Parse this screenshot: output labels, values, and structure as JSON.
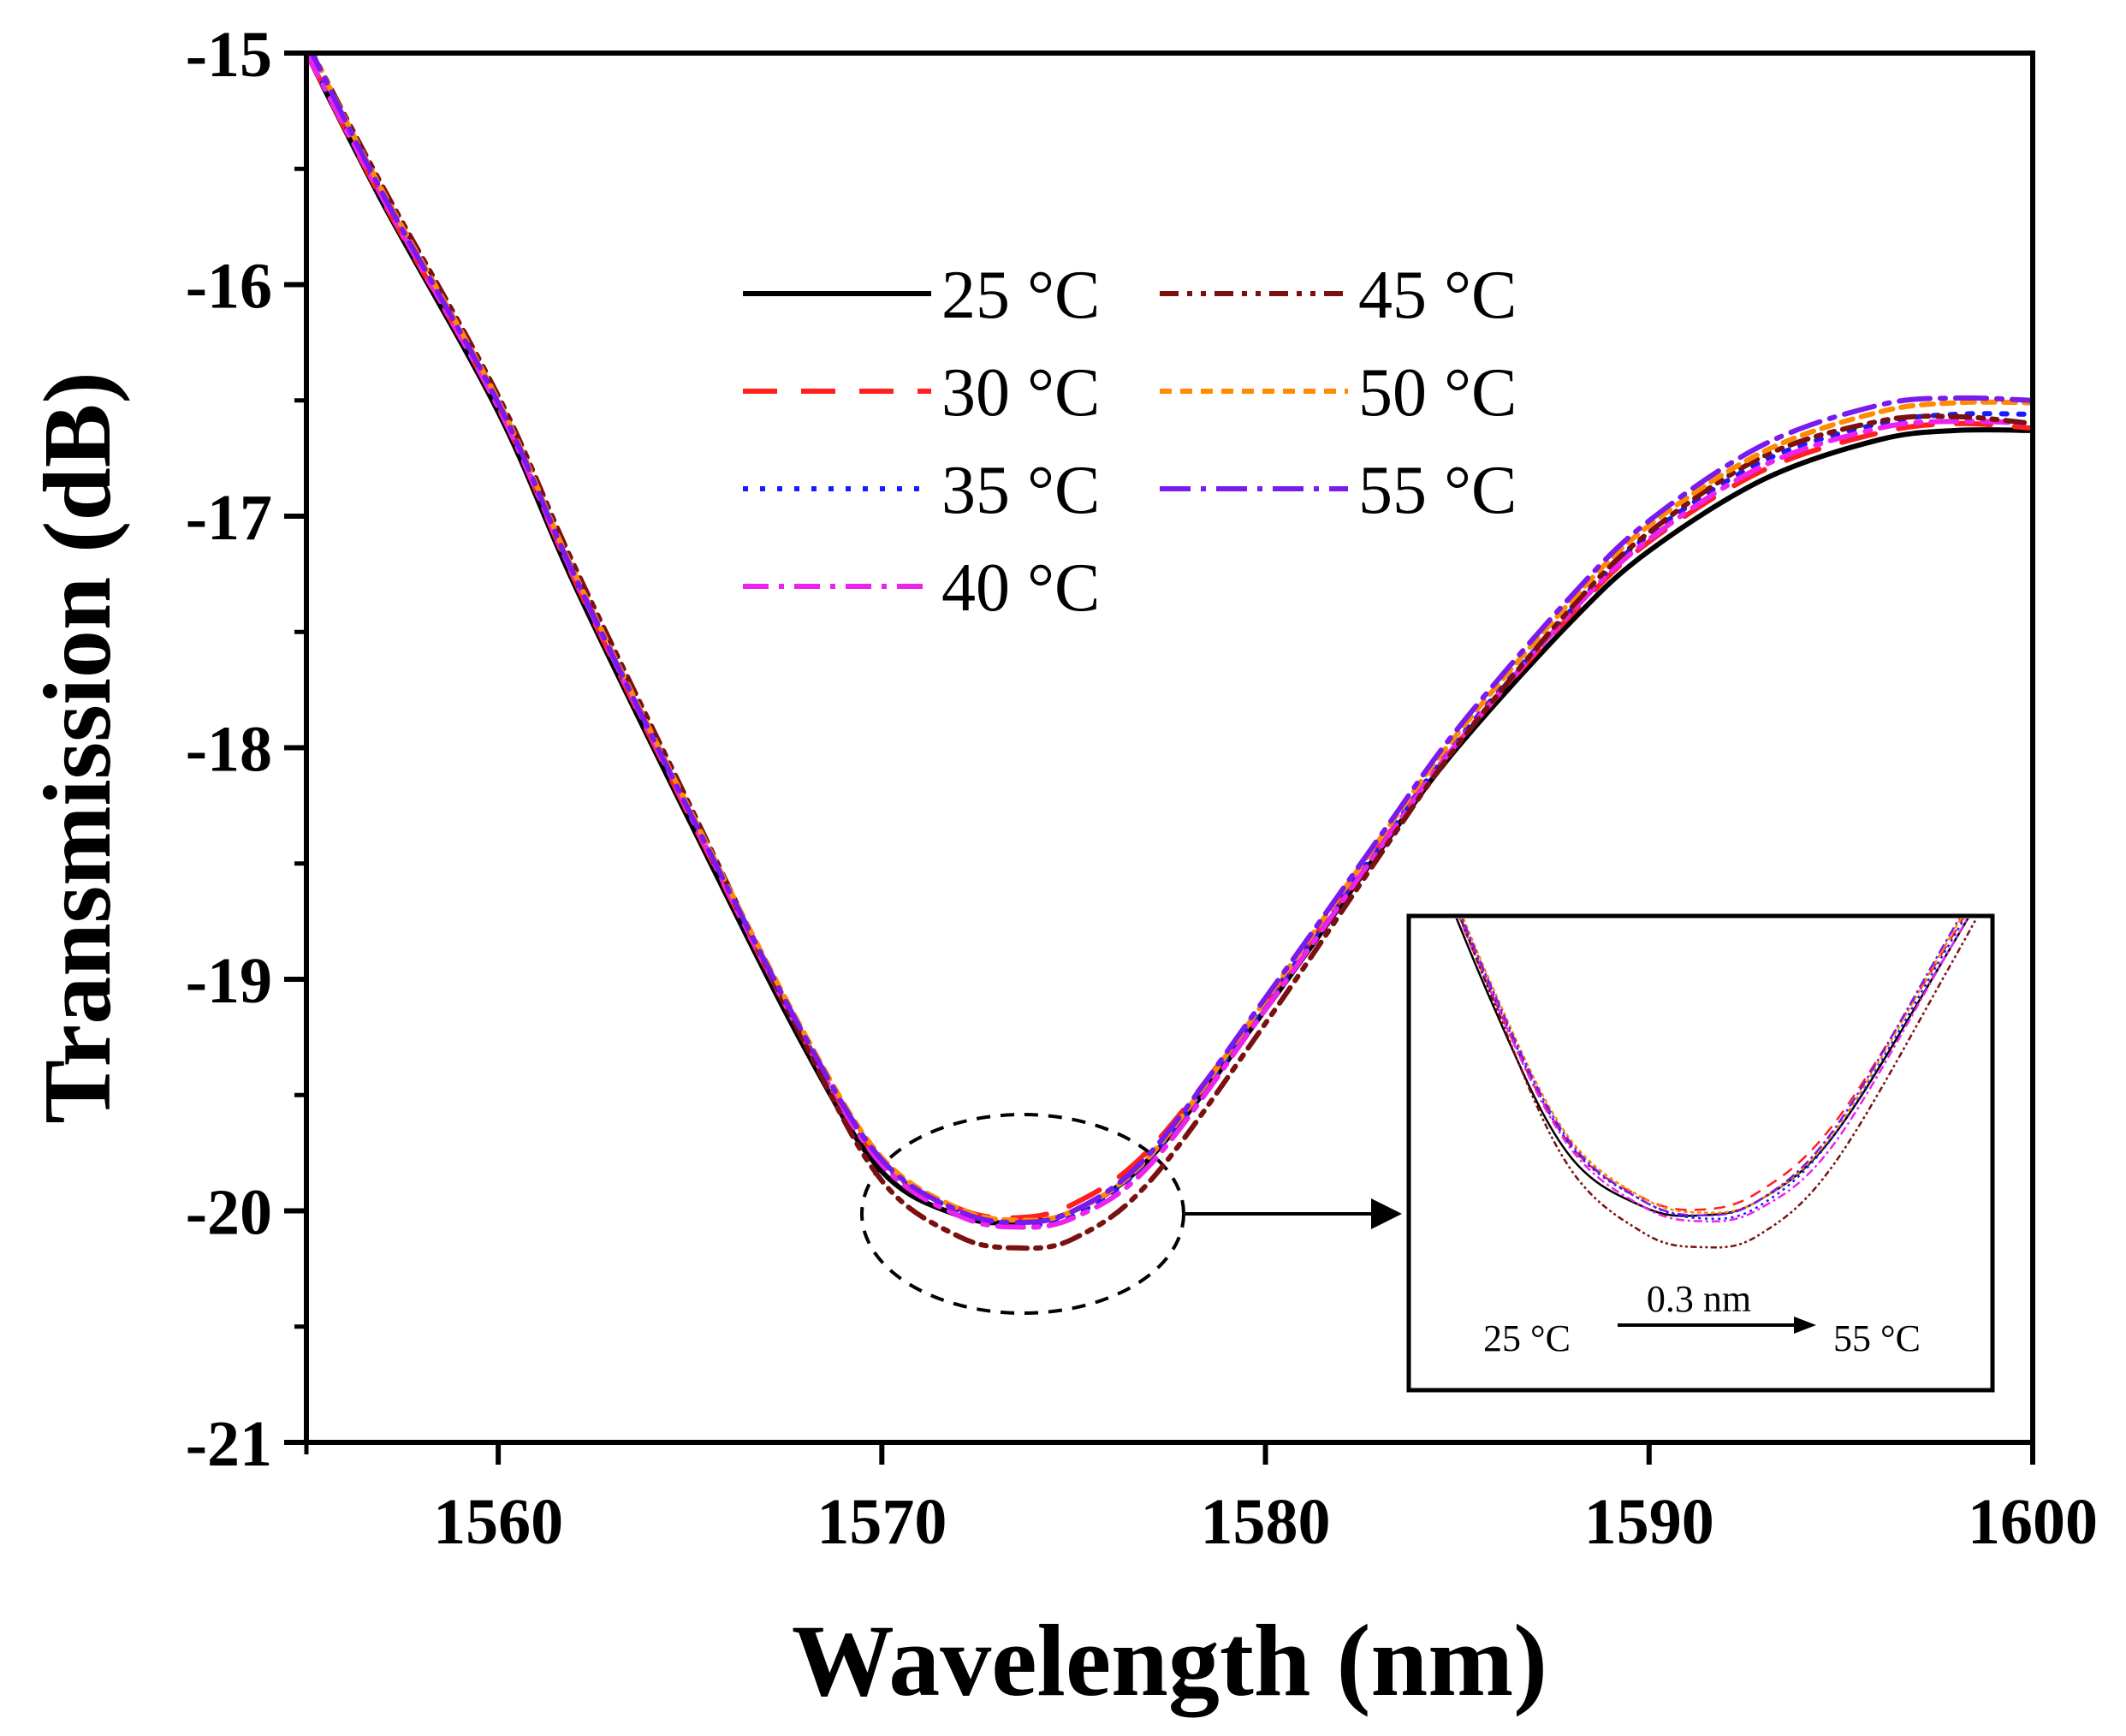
{
  "chart_data": {
    "type": "line",
    "xlabel": "Wavelength (nm)",
    "ylabel": "Transmission (dB)",
    "xlim": [
      1555,
      1600
    ],
    "ylim": [
      -21,
      -15
    ],
    "x_ticks": [
      1560,
      1570,
      1580,
      1590,
      1600
    ],
    "x_tick_labels": [
      "1560",
      "1570",
      "1580",
      "1590",
      "1600"
    ],
    "y_ticks": [
      -15,
      -16,
      -17,
      -18,
      -19,
      -20,
      -21
    ],
    "y_tick_labels": [
      "-15",
      "-16",
      "-17",
      "-18",
      "-19",
      "-20",
      "-21"
    ],
    "grid": false,
    "legend_position": "top-center",
    "x": [
      1555,
      1557,
      1560,
      1562,
      1565,
      1568,
      1570,
      1572,
      1573.5,
      1575,
      1577,
      1580,
      1583,
      1585,
      1588,
      1590,
      1593,
      1596,
      1598,
      1600
    ],
    "series": [
      {
        "name": "25 °C",
        "color": "#000000",
        "dash": "solid",
        "values": [
          -15.0,
          -15.65,
          -16.55,
          -17.3,
          -18.32,
          -19.3,
          -19.83,
          -20.02,
          -20.05,
          -20.0,
          -19.77,
          -19.13,
          -18.44,
          -18.0,
          -17.45,
          -17.15,
          -16.84,
          -16.67,
          -16.63,
          -16.63
        ]
      },
      {
        "name": "30 °C",
        "color": "#ff1f1f",
        "dash": "40,28",
        "values": [
          -15.0,
          -15.64,
          -16.53,
          -17.28,
          -18.3,
          -19.27,
          -19.79,
          -19.99,
          -20.03,
          -19.97,
          -19.73,
          -19.1,
          -18.42,
          -17.98,
          -17.42,
          -17.11,
          -16.8,
          -16.64,
          -16.6,
          -16.62
        ]
      },
      {
        "name": "35 °C",
        "color": "#1a1aff",
        "dash": "6,14",
        "values": [
          -15.0,
          -15.62,
          -16.52,
          -17.27,
          -18.29,
          -19.26,
          -19.79,
          -20.0,
          -20.06,
          -20.02,
          -19.77,
          -19.11,
          -18.42,
          -17.97,
          -17.4,
          -17.08,
          -16.76,
          -16.6,
          -16.56,
          -16.56
        ]
      },
      {
        "name": "40 °C",
        "color": "#ee22ee",
        "dash": "30,12,6,12",
        "values": [
          -15.0,
          -15.63,
          -16.53,
          -17.27,
          -18.29,
          -19.27,
          -19.8,
          -20.02,
          -20.07,
          -20.03,
          -19.8,
          -19.13,
          -18.43,
          -17.98,
          -17.41,
          -17.1,
          -16.78,
          -16.62,
          -16.59,
          -16.6
        ]
      },
      {
        "name": "45 °C",
        "color": "#7a1010",
        "dash": "22,10,6,10,6,10",
        "values": [
          -14.95,
          -15.58,
          -16.48,
          -17.22,
          -18.25,
          -19.28,
          -19.87,
          -20.11,
          -20.16,
          -20.12,
          -19.87,
          -19.19,
          -18.46,
          -17.99,
          -17.39,
          -17.07,
          -16.74,
          -16.59,
          -16.57,
          -16.6
        ]
      },
      {
        "name": "50 °C",
        "color": "#ff8c00",
        "dash": "14,10",
        "values": [
          -14.95,
          -15.6,
          -16.5,
          -17.25,
          -18.27,
          -19.24,
          -19.77,
          -19.99,
          -20.04,
          -20.0,
          -19.76,
          -19.09,
          -18.39,
          -17.94,
          -17.36,
          -17.04,
          -16.72,
          -16.55,
          -16.51,
          -16.51
        ]
      },
      {
        "name": "55 °C",
        "color": "#7a1aee",
        "dash": "36,12,6,12",
        "values": [
          -14.95,
          -15.61,
          -16.51,
          -17.26,
          -18.28,
          -19.25,
          -19.78,
          -20.0,
          -20.05,
          -20.0,
          -19.75,
          -19.08,
          -18.38,
          -17.92,
          -17.34,
          -17.02,
          -16.69,
          -16.52,
          -16.49,
          -16.5
        ]
      }
    ],
    "inset": {
      "labels": {
        "start": "25 °C",
        "end": "55 °C",
        "shift": "0.3 nm"
      },
      "xlim": [
        1566,
        1581
      ],
      "ylim": [
        -20.3,
        -19.1
      ]
    }
  }
}
